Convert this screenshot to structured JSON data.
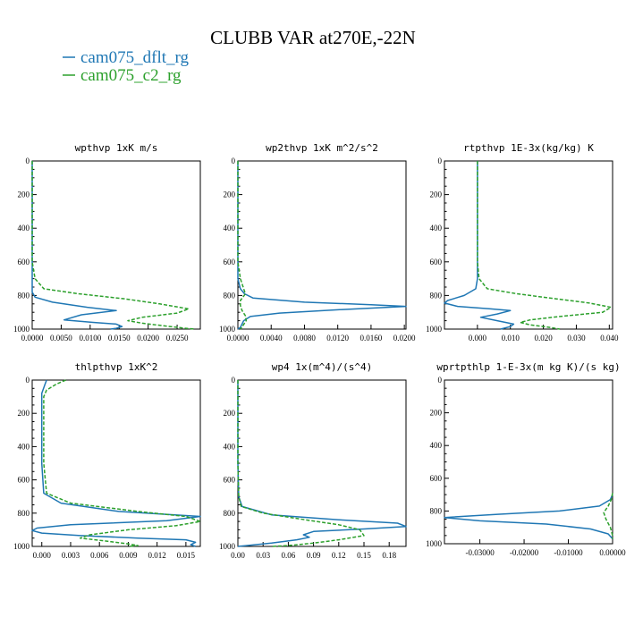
{
  "figure": {
    "title": "CLUBB VAR at270E,-22N",
    "legend": [
      {
        "name": "cam075_dflt_rg",
        "color": "#1f77b4",
        "style": "solid"
      },
      {
        "name": "cam075_c2_rg",
        "color": "#2ca02c",
        "style": "dashed"
      }
    ]
  },
  "chart_data": [
    {
      "type": "line",
      "title": "wpthvp  1xK m/s",
      "ylim": [
        1000,
        0
      ],
      "xlim": [
        0,
        0.029
      ],
      "xticks": [
        "0.0000",
        "0.0050",
        "0.0100",
        "0.0150",
        "0.0200",
        "0.0250"
      ],
      "xtick_values": [
        0,
        0.005,
        0.01,
        0.015,
        0.02,
        0.025
      ],
      "yticks": [
        "0",
        "200",
        "400",
        "600",
        "800",
        "1000"
      ],
      "series": [
        {
          "name": "cam075_dflt_rg",
          "points": [
            [
              0,
              0
            ],
            [
              0,
              700
            ],
            [
              0,
              780
            ],
            [
              0.0005,
              810
            ],
            [
              0.0035,
              840
            ],
            [
              0.0095,
              870
            ],
            [
              0.0145,
              890
            ],
            [
              0.0085,
              915
            ],
            [
              0.0055,
              945
            ],
            [
              0.0105,
              960
            ],
            [
              0.0145,
              970
            ],
            [
              0.0155,
              985
            ],
            [
              0.0145,
              995
            ],
            [
              0.0135,
              1000
            ]
          ]
        },
        {
          "name": "cam075_c2_rg",
          "points": [
            [
              0,
              0
            ],
            [
              0,
              600
            ],
            [
              0.0005,
              700
            ],
            [
              0.002,
              760
            ],
            [
              0.008,
              790
            ],
            [
              0.016,
              820
            ],
            [
              0.022,
              850
            ],
            [
              0.027,
              880
            ],
            [
              0.025,
              905
            ],
            [
              0.019,
              930
            ],
            [
              0.0165,
              950
            ],
            [
              0.019,
              965
            ],
            [
              0.0225,
              980
            ],
            [
              0.0265,
              995
            ],
            [
              0.028,
              1000
            ]
          ]
        }
      ]
    },
    {
      "type": "line",
      "title": "wp2thvp  1xK m^2/s^2",
      "ylim": [
        1000,
        0
      ],
      "xlim": [
        0,
        0.0202
      ],
      "xticks": [
        "0.0000",
        "0.0040",
        "0.0080",
        "0.0120",
        "0.0160",
        "0.0200"
      ],
      "xtick_values": [
        0,
        0.004,
        0.008,
        0.012,
        0.016,
        0.02
      ],
      "yticks": [
        "0",
        "200",
        "400",
        "600",
        "800",
        "1000"
      ],
      "series": [
        {
          "name": "cam075_dflt_rg",
          "points": [
            [
              0,
              0
            ],
            [
              0,
              700
            ],
            [
              0.0003,
              760
            ],
            [
              0.0008,
              790
            ],
            [
              0.0018,
              815
            ],
            [
              0.008,
              840
            ],
            [
              0.016,
              855
            ],
            [
              0.0202,
              865
            ],
            [
              0.012,
              885
            ],
            [
              0.005,
              905
            ],
            [
              0.0015,
              925
            ],
            [
              0.0007,
              950
            ],
            [
              0.0003,
              990
            ],
            [
              0,
              1000
            ]
          ]
        },
        {
          "name": "cam075_c2_rg",
          "points": [
            [
              0,
              0
            ],
            [
              0,
              600
            ],
            [
              0.0003,
              700
            ],
            [
              0.0007,
              760
            ],
            [
              0.0009,
              790
            ],
            [
              0.0006,
              810
            ],
            [
              0.0003,
              830
            ],
            [
              0.0003,
              860
            ],
            [
              0.0005,
              890
            ],
            [
              0.0009,
              920
            ],
            [
              0.001,
              950
            ],
            [
              0.0006,
              980
            ],
            [
              0.0003,
              1000
            ]
          ]
        }
      ]
    },
    {
      "type": "line",
      "title": "rtpthvp  1E-3x(kg/kg) K",
      "ylim": [
        1000,
        0
      ],
      "xlim": [
        -0.01,
        0.041
      ],
      "xticks": [
        "0.000",
        "0.010",
        "0.020",
        "0.030",
        "0.040"
      ],
      "xtick_values": [
        0,
        0.01,
        0.02,
        0.03,
        0.04
      ],
      "yticks": [
        "0",
        "200",
        "400",
        "600",
        "800",
        "1000"
      ],
      "series": [
        {
          "name": "cam075_dflt_rg",
          "points": [
            [
              0,
              0
            ],
            [
              0,
              700
            ],
            [
              -0.0005,
              760
            ],
            [
              -0.004,
              800
            ],
            [
              -0.009,
              830
            ],
            [
              -0.01,
              845
            ],
            [
              -0.006,
              865
            ],
            [
              0.004,
              880
            ],
            [
              0.01,
              890
            ],
            [
              0.006,
              910
            ],
            [
              0.001,
              930
            ],
            [
              0.006,
              950
            ],
            [
              0.011,
              970
            ],
            [
              0.01,
              985
            ],
            [
              0.007,
              1000
            ]
          ]
        },
        {
          "name": "cam075_c2_rg",
          "points": [
            [
              0,
              0
            ],
            [
              0,
              600
            ],
            [
              0.0005,
              700
            ],
            [
              0.003,
              760
            ],
            [
              0.012,
              790
            ],
            [
              0.024,
              820
            ],
            [
              0.034,
              845
            ],
            [
              0.0405,
              870
            ],
            [
              0.038,
              900
            ],
            [
              0.025,
              925
            ],
            [
              0.016,
              945
            ],
            [
              0.013,
              960
            ],
            [
              0.016,
              975
            ],
            [
              0.022,
              990
            ],
            [
              0.025,
              1000
            ]
          ]
        }
      ]
    },
    {
      "type": "line",
      "title": "thlpthvp  1xK^2",
      "ylim": [
        1000,
        0
      ],
      "xlim": [
        -0.001,
        0.0165
      ],
      "xticks": [
        "0.000",
        "0.003",
        "0.006",
        "0.009",
        "0.012",
        "0.015"
      ],
      "xtick_values": [
        0,
        0.003,
        0.006,
        0.009,
        0.012,
        0.015
      ],
      "yticks": [
        "0",
        "200",
        "400",
        "600",
        "800",
        "1000"
      ],
      "series": [
        {
          "name": "cam075_dflt_rg",
          "points": [
            [
              0.0005,
              0
            ],
            [
              0.0003,
              30
            ],
            [
              0,
              80
            ],
            [
              0,
              500
            ],
            [
              0.0002,
              680
            ],
            [
              0.002,
              740
            ],
            [
              0.008,
              790
            ],
            [
              0.0165,
              820
            ],
            [
              0.013,
              845
            ],
            [
              0.003,
              870
            ],
            [
              -0.0005,
              890
            ],
            [
              -0.001,
              905
            ],
            [
              0,
              920
            ],
            [
              0.004,
              935
            ],
            [
              0.01,
              950
            ],
            [
              0.015,
              960
            ],
            [
              0.016,
              975
            ],
            [
              0.0155,
              990
            ],
            [
              0.016,
              1000
            ]
          ]
        },
        {
          "name": "cam075_c2_rg",
          "points": [
            [
              0.0025,
              0
            ],
            [
              0.0015,
              25
            ],
            [
              0.0005,
              60
            ],
            [
              0.0002,
              100
            ],
            [
              0.0002,
              500
            ],
            [
              0.0005,
              680
            ],
            [
              0.003,
              740
            ],
            [
              0.01,
              790
            ],
            [
              0.015,
              820
            ],
            [
              0.0165,
              850
            ],
            [
              0.014,
              875
            ],
            [
              0.009,
              900
            ],
            [
              0.005,
              930
            ],
            [
              0.004,
              950
            ],
            [
              0.007,
              970
            ],
            [
              0.009,
              985
            ],
            [
              0.01,
              995
            ],
            [
              0.009,
              1000
            ]
          ]
        }
      ]
    },
    {
      "type": "line",
      "title": "wp4  1x(m^4)/(s^4)",
      "ylim": [
        1000,
        0
      ],
      "xlim": [
        0,
        0.2
      ],
      "xticks": [
        "0.00",
        "0.03",
        "0.06",
        "0.09",
        "0.12",
        "0.15",
        "0.18"
      ],
      "xtick_values": [
        0,
        0.03,
        0.06,
        0.09,
        0.12,
        0.15,
        0.18
      ],
      "yticks": [
        "0",
        "200",
        "400",
        "600",
        "800",
        "1000"
      ],
      "series": [
        {
          "name": "cam075_dflt_rg",
          "points": [
            [
              0,
              0
            ],
            [
              0,
              500
            ],
            [
              0.001,
              700
            ],
            [
              0.005,
              760
            ],
            [
              0.04,
              810
            ],
            [
              0.12,
              840
            ],
            [
              0.19,
              860
            ],
            [
              0.2,
              880
            ],
            [
              0.15,
              895
            ],
            [
              0.09,
              910
            ],
            [
              0.078,
              930
            ],
            [
              0.085,
              945
            ],
            [
              0.07,
              960
            ],
            [
              0.04,
              980
            ],
            [
              0.01,
              995
            ],
            [
              0,
              1000
            ]
          ]
        },
        {
          "name": "cam075_c2_rg",
          "points": [
            [
              0,
              0
            ],
            [
              0,
              500
            ],
            [
              0.001,
              700
            ],
            [
              0.004,
              760
            ],
            [
              0.03,
              800
            ],
            [
              0.08,
              840
            ],
            [
              0.12,
              870
            ],
            [
              0.145,
              900
            ],
            [
              0.15,
              935
            ],
            [
              0.12,
              960
            ],
            [
              0.09,
              980
            ],
            [
              0.06,
              995
            ],
            [
              0.04,
              1000
            ]
          ]
        }
      ]
    },
    {
      "type": "line",
      "title": "wprtpthlp  1-E-3x(m kg K)/(s kg)",
      "ylim": [
        1000,
        0
      ],
      "xlim": [
        -0.038,
        0
      ],
      "xticks": [
        "-0.03000",
        "-0.02000",
        "-0.01000",
        "0.00000"
      ],
      "xtick_values": [
        -0.03,
        -0.02,
        -0.01,
        0
      ],
      "yticks": [
        "0",
        "200",
        "400",
        "600",
        "800",
        "1000"
      ],
      "series": [
        {
          "name": "cam075_dflt_rg",
          "points": [
            [
              0,
              700
            ],
            [
              -0.0005,
              730
            ],
            [
              -0.003,
              770
            ],
            [
              -0.012,
              800
            ],
            [
              -0.026,
              820
            ],
            [
              -0.038,
              840
            ],
            [
              -0.03,
              860
            ],
            [
              -0.015,
              880
            ],
            [
              -0.005,
              910
            ],
            [
              -0.001,
              940
            ],
            [
              0,
              970
            ]
          ]
        },
        {
          "name": "cam075_c2_rg",
          "points": [
            [
              0,
              690
            ],
            [
              -0.0003,
              730
            ],
            [
              -0.001,
              770
            ],
            [
              -0.002,
              810
            ],
            [
              -0.0015,
              850
            ],
            [
              -0.0005,
              900
            ],
            [
              0,
              950
            ],
            [
              0,
              970
            ]
          ]
        }
      ]
    }
  ]
}
